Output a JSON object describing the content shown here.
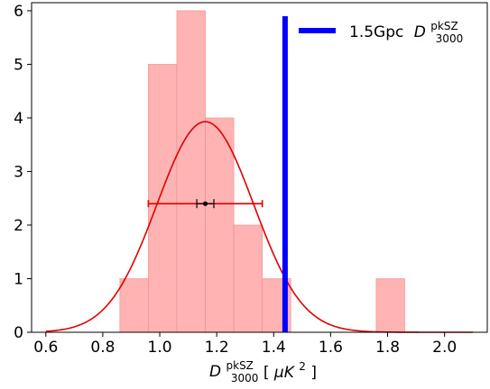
{
  "chart_data": {
    "type": "bar",
    "title": "",
    "xlabel": {
      "main": "D",
      "superscript": "pkSZ",
      "subscript": "3000",
      "units_prefix": "[",
      "units": "μK",
      "units_power": "2",
      "units_suffix": "]"
    },
    "ylabel": "",
    "xlim": [
      0.55,
      2.15
    ],
    "ylim": [
      0,
      6.15
    ],
    "grid": false,
    "x_tick_labels": [
      "0.6",
      "0.8",
      "1.0",
      "1.2",
      "1.4",
      "1.6",
      "1.8",
      "2.0"
    ],
    "x_tick_values": [
      0.6,
      0.8,
      1.0,
      1.2,
      1.4,
      1.6,
      1.8,
      2.0
    ],
    "y_tick_labels": [
      "0",
      "1",
      "2",
      "3",
      "4",
      "5",
      "6"
    ],
    "y_tick_values": [
      0,
      1,
      2,
      3,
      4,
      5,
      6
    ],
    "histogram": {
      "bin_edges": [
        0.86,
        0.96,
        1.06,
        1.16,
        1.26,
        1.36,
        1.46,
        1.56,
        1.66,
        1.76,
        1.86
      ],
      "counts": [
        1,
        5,
        6,
        4,
        2,
        1,
        0,
        0,
        0,
        1
      ],
      "color": "#ffb3b3"
    },
    "gaussian": {
      "mean": 1.16,
      "sigma": 0.17,
      "peak": 3.93,
      "x_range": [
        0.6,
        2.1
      ],
      "color": "#e00000"
    },
    "width_line": {
      "x_start": 0.96,
      "x_end": 1.36,
      "y": 2.4,
      "color": "#e00000"
    },
    "mean_marker": {
      "x": 1.16,
      "x_err": 0.03,
      "y": 2.4,
      "color": "#000000"
    },
    "reference_line": {
      "x": 1.44,
      "color": "#0000ff"
    },
    "legend": {
      "placement": "top-right",
      "label_prefix": "1.5Gpc",
      "label_main": "D",
      "label_superscript": "pkSZ",
      "label_subscript": "3000",
      "line_color": "#0000ff"
    }
  }
}
